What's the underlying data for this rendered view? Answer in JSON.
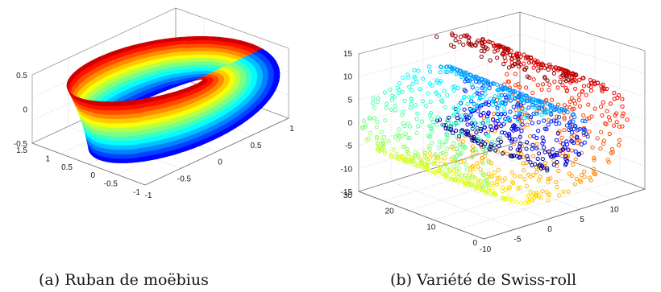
{
  "figure_captions": {
    "a": "(a) Ruban de moëbius",
    "b": "(b) Variété de Swiss-roll"
  },
  "chart_data": [
    {
      "type": "surface3d",
      "title": "",
      "colormap": "jet",
      "grid": true,
      "x_ticks": [
        "-1",
        "-0.5",
        "0",
        "0.5",
        "1"
      ],
      "y_ticks": [
        "-1",
        "-0.5",
        "0",
        "0.5",
        "1",
        "1.5"
      ],
      "z_ticks": [
        "0.5",
        "0",
        "-0.5"
      ],
      "xlim": [
        -1,
        1
      ],
      "ylim": [
        -1,
        1.5
      ],
      "zlim": [
        -0.5,
        0.5
      ],
      "surface": {
        "name": "",
        "u_range": [
          0,
          6.2832
        ],
        "v_range": [
          -0.5,
          0.5
        ]
      }
    },
    {
      "type": "scatter3d",
      "title": "",
      "colormap": "jet",
      "grid": true,
      "x_ticks": [
        "-10",
        "-5",
        "0",
        "5",
        "10"
      ],
      "y_ticks": [
        "0",
        "10",
        "20",
        "30"
      ],
      "z_ticks": [
        "15",
        "10",
        "5",
        "0",
        "-5",
        "-10",
        "-15"
      ],
      "xlim": [
        -10,
        15
      ],
      "ylim": [
        0,
        30
      ],
      "zlim": [
        -15,
        15
      ],
      "manifold": {
        "t_range": [
          4.71,
          14.14
        ],
        "height_range": [
          0,
          30
        ]
      }
    }
  ]
}
